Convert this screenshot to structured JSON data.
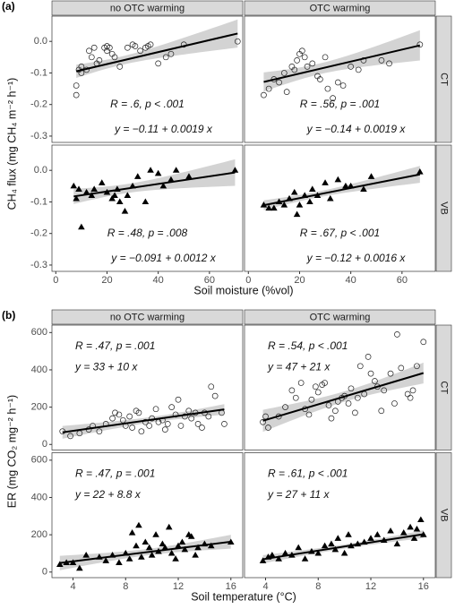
{
  "chart_data": [
    {
      "type": "scatter",
      "panel_label": "(a)",
      "xlabel": "Soil moisture (%vol)",
      "ylabel": "CH₄ flux (mg CH₄ m⁻² h⁻¹)",
      "columns": [
        "no OTC warming",
        "OTC warming"
      ],
      "rows": [
        "CT",
        "VB"
      ],
      "markers": [
        "circle",
        "triangle"
      ],
      "annotation_position": "bottom",
      "xlim": [
        -1.5,
        73
      ],
      "xticks": [
        0,
        20,
        40,
        60
      ],
      "ylim": [
        -0.32,
        0.08
      ],
      "yticks": [
        -0.3,
        -0.2,
        -0.1,
        {
          "value": 0,
          "label": "0.0"
        }
      ],
      "panels": [
        {
          "x": [
            8,
            8,
            9,
            10,
            10,
            12,
            13,
            14,
            15,
            16,
            17,
            19,
            20,
            20,
            21,
            22,
            23,
            25,
            28,
            30,
            31,
            33,
            35,
            36,
            37,
            40,
            43,
            45,
            50,
            71
          ],
          "y": [
            -0.17,
            -0.14,
            -0.09,
            -0.08,
            -0.1,
            -0.09,
            -0.03,
            -0.05,
            -0.02,
            -0.07,
            -0.06,
            -0.02,
            -0.03,
            -0.015,
            -0.02,
            -0.04,
            -0.05,
            -0.08,
            -0.02,
            -0.01,
            -0.015,
            -0.03,
            -0.02,
            -0.015,
            -0.01,
            -0.07,
            -0.05,
            -0.04,
            -0.01,
            0.0
          ],
          "fit": {
            "intercept": -0.11,
            "slope": 0.0019
          },
          "stat": "R = .6, p < .001",
          "equation": "y = −0.11 + 0.0019 x"
        },
        {
          "x": [
            6,
            8,
            10,
            12,
            14,
            15,
            17,
            18,
            19,
            20,
            21,
            22,
            23,
            25,
            27,
            28,
            30,
            31,
            33,
            35,
            37,
            40,
            43,
            45,
            52,
            55,
            67
          ],
          "y": [
            -0.17,
            -0.15,
            -0.12,
            -0.13,
            -0.1,
            -0.16,
            -0.08,
            -0.09,
            -0.06,
            -0.04,
            -0.03,
            -0.05,
            -0.08,
            -0.07,
            -0.11,
            -0.12,
            -0.05,
            -0.15,
            -0.18,
            -0.13,
            -0.14,
            -0.08,
            -0.09,
            -0.06,
            -0.06,
            -0.07,
            -0.01
          ],
          "fit": {
            "intercept": -0.14,
            "slope": 0.0019
          },
          "stat": "R = .56, p = .001",
          "equation": "y = −0.14 + 0.0019 x"
        },
        {
          "x": [
            7,
            8,
            9,
            10,
            12,
            14,
            15,
            18,
            20,
            22,
            23,
            24,
            25,
            27,
            28,
            30,
            32,
            35,
            37,
            40,
            42,
            45,
            47,
            52,
            70
          ],
          "y": [
            -0.05,
            -0.09,
            -0.06,
            -0.18,
            -0.07,
            -0.08,
            -0.06,
            -0.04,
            -0.07,
            -0.09,
            -0.08,
            -0.06,
            -0.1,
            -0.13,
            -0.08,
            -0.05,
            -0.02,
            -0.1,
            0.0,
            -0.01,
            -0.05,
            -0.03,
            0.0,
            -0.02,
            0.0
          ],
          "fit": {
            "intercept": -0.091,
            "slope": 0.0012
          },
          "stat": "R = .48, p = .008",
          "equation": "y = −0.091 + 0.0012 x"
        },
        {
          "x": [
            6,
            8,
            10,
            12,
            14,
            16,
            18,
            19,
            20,
            22,
            24,
            25,
            27,
            30,
            32,
            35,
            38,
            40,
            45,
            48,
            67
          ],
          "y": [
            -0.11,
            -0.12,
            -0.12,
            -0.1,
            -0.11,
            -0.09,
            -0.07,
            -0.14,
            -0.11,
            -0.08,
            -0.1,
            -0.06,
            -0.08,
            -0.04,
            -0.09,
            -0.03,
            -0.05,
            -0.05,
            -0.06,
            -0.02,
            -0.005
          ],
          "fit": {
            "intercept": -0.12,
            "slope": 0.0016
          },
          "stat": "R = .67, p < .001",
          "equation": "y = −0.12 + 0.0016 x"
        }
      ]
    },
    {
      "type": "scatter",
      "panel_label": "(b)",
      "xlabel": "Soil temperature (°C)",
      "ylabel": "ER (mg CO₂ mg⁻² h⁻¹)",
      "columns": [
        "no OTC warming",
        "OTC warming"
      ],
      "rows": [
        "CT",
        "VB"
      ],
      "markers": [
        "circle",
        "triangle"
      ],
      "annotation_position": "top-left",
      "xlim": [
        2.4,
        16.9
      ],
      "xticks": [
        4,
        8,
        12,
        16
      ],
      "ylim": [
        -30,
        640
      ],
      "yticks": [
        0,
        200,
        400,
        600
      ],
      "panels": [
        {
          "x": [
            3.2,
            3.8,
            4.5,
            5.2,
            5.5,
            6,
            6.5,
            7,
            7.2,
            7.5,
            7.8,
            8,
            8.3,
            8.5,
            8.8,
            9,
            9.2,
            9.5,
            9.8,
            10,
            10.3,
            10.5,
            10.8,
            11,
            11.2,
            11.5,
            11.8,
            12,
            12.2,
            12.5,
            12.8,
            13,
            13.3,
            13.5,
            13.8,
            14,
            14.3,
            14.5,
            14.8,
            15.3,
            15.5
          ],
          "y": [
            70,
            45,
            60,
            80,
            100,
            70,
            110,
            140,
            170,
            160,
            130,
            100,
            150,
            90,
            180,
            170,
            70,
            120,
            100,
            140,
            190,
            120,
            130,
            80,
            110,
            200,
            160,
            240,
            100,
            150,
            180,
            140,
            170,
            110,
            90,
            170,
            150,
            310,
            260,
            170,
            110
          ],
          "fit": {
            "intercept": 33,
            "slope": 10
          },
          "stat": "R = .47, p = .001",
          "equation": "y = 33 + 10 x"
        },
        {
          "x": [
            3.8,
            4,
            4.2,
            5,
            5.5,
            6,
            6.3,
            6.7,
            7,
            7.3,
            7.5,
            7.8,
            8,
            8.3,
            8.5,
            8.8,
            9,
            9.3,
            9.5,
            9.8,
            10,
            10.3,
            10.5,
            10.8,
            11,
            11.2,
            11.5,
            11.8,
            12,
            12.3,
            12.5,
            12.8,
            13,
            13.5,
            13.8,
            14,
            14.3,
            14.8,
            15,
            15.2,
            15.5,
            16
          ],
          "y": [
            120,
            150,
            90,
            150,
            200,
            290,
            250,
            330,
            190,
            160,
            240,
            310,
            280,
            320,
            330,
            210,
            140,
            180,
            230,
            250,
            260,
            220,
            300,
            170,
            250,
            420,
            270,
            470,
            380,
            340,
            310,
            180,
            290,
            380,
            220,
            590,
            410,
            270,
            250,
            290,
            420,
            550
          ],
          "fit": {
            "intercept": 47,
            "slope": 21
          },
          "stat": "R = .54, p < .001",
          "equation": "y = 47 + 21 x"
        },
        {
          "x": [
            3,
            3.5,
            4,
            4.5,
            5,
            6,
            6.5,
            7,
            7.5,
            8,
            8.3,
            8.5,
            8.8,
            9,
            9.2,
            9.5,
            9.8,
            10,
            10.3,
            10.5,
            10.8,
            11,
            11.3,
            11.5,
            11.8,
            12,
            12.3,
            12.5,
            12.8,
            13,
            13.3,
            13.5,
            14,
            14.5,
            16
          ],
          "y": [
            40,
            50,
            50,
            20,
            90,
            80,
            60,
            90,
            50,
            100,
            70,
            210,
            140,
            250,
            80,
            160,
            130,
            90,
            200,
            110,
            150,
            130,
            240,
            100,
            70,
            140,
            160,
            120,
            200,
            190,
            90,
            130,
            150,
            140,
            160
          ],
          "fit": {
            "intercept": 22,
            "slope": 8.8
          },
          "stat": "R = .47, p = .001",
          "equation": "y = 22 + 8.8 x"
        },
        {
          "x": [
            3.8,
            4.2,
            4.5,
            5,
            5.5,
            6,
            6.5,
            7,
            7.5,
            8,
            8.5,
            9,
            9.3,
            9.5,
            10,
            10.3,
            10.5,
            11,
            11.5,
            12,
            12.5,
            13,
            13.5,
            14,
            14.5,
            15,
            15.3,
            15.5,
            15.8,
            16
          ],
          "y": [
            60,
            80,
            90,
            70,
            100,
            90,
            130,
            70,
            110,
            100,
            140,
            150,
            120,
            180,
            100,
            200,
            140,
            150,
            160,
            180,
            200,
            170,
            220,
            150,
            210,
            240,
            180,
            230,
            280,
            200
          ],
          "fit": {
            "intercept": 27,
            "slope": 11
          },
          "stat": "R = .61, p < .001",
          "equation": "y = 27 + 11 x"
        }
      ]
    }
  ]
}
